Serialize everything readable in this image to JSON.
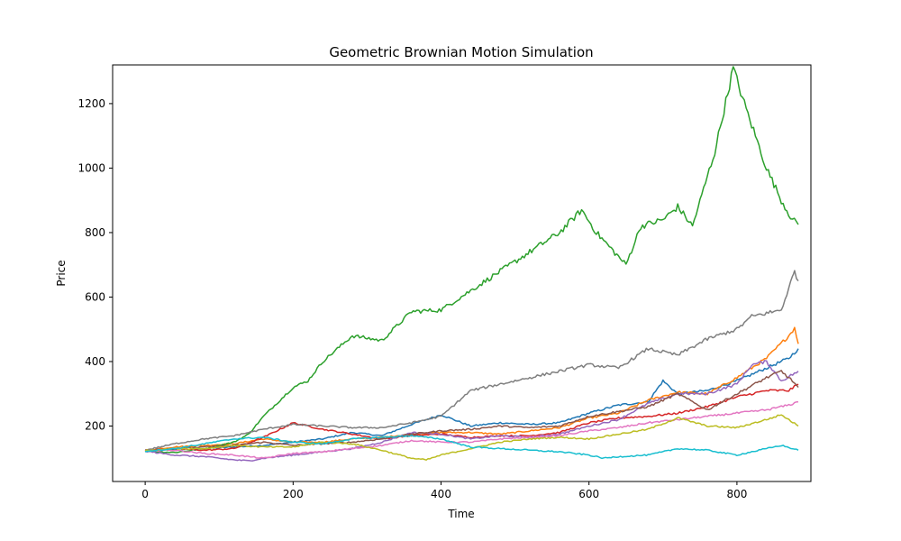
{
  "chart_data": {
    "type": "line",
    "title": "Geometric Brownian Motion Simulation",
    "xlabel": "Time",
    "ylabel": "Price",
    "xlim": [
      -44,
      900
    ],
    "ylim": [
      28,
      1320
    ],
    "xticks": [
      0,
      200,
      400,
      600,
      800
    ],
    "yticks": [
      200,
      400,
      600,
      800,
      1000,
      1200
    ],
    "grid": false,
    "legend": false,
    "series": [
      {
        "color": "#1f77b4",
        "points": [
          [
            0,
            124
          ],
          [
            40,
            128
          ],
          [
            80,
            130
          ],
          [
            120,
            135
          ],
          [
            160,
            140
          ],
          [
            200,
            150
          ],
          [
            240,
            160
          ],
          [
            280,
            180
          ],
          [
            320,
            170
          ],
          [
            360,
            205
          ],
          [
            400,
            235
          ],
          [
            440,
            200
          ],
          [
            480,
            210
          ],
          [
            520,
            205
          ],
          [
            560,
            210
          ],
          [
            600,
            240
          ],
          [
            640,
            265
          ],
          [
            680,
            275
          ],
          [
            700,
            340
          ],
          [
            720,
            300
          ],
          [
            760,
            310
          ],
          [
            800,
            340
          ],
          [
            840,
            380
          ],
          [
            870,
            410
          ],
          [
            883,
            440
          ]
        ]
      },
      {
        "color": "#ff7f0e",
        "points": [
          [
            0,
            125
          ],
          [
            40,
            135
          ],
          [
            80,
            140
          ],
          [
            120,
            145
          ],
          [
            160,
            160
          ],
          [
            200,
            150
          ],
          [
            240,
            150
          ],
          [
            280,
            160
          ],
          [
            320,
            165
          ],
          [
            360,
            175
          ],
          [
            400,
            180
          ],
          [
            440,
            180
          ],
          [
            480,
            175
          ],
          [
            520,
            185
          ],
          [
            560,
            195
          ],
          [
            600,
            225
          ],
          [
            640,
            240
          ],
          [
            680,
            280
          ],
          [
            720,
            305
          ],
          [
            760,
            300
          ],
          [
            800,
            350
          ],
          [
            840,
            410
          ],
          [
            870,
            480
          ],
          [
            878,
            505
          ],
          [
            883,
            455
          ]
        ]
      },
      {
        "color": "#2ca02c",
        "points": [
          [
            0,
            122
          ],
          [
            40,
            118
          ],
          [
            80,
            130
          ],
          [
            120,
            150
          ],
          [
            140,
            175
          ],
          [
            160,
            230
          ],
          [
            200,
            320
          ],
          [
            220,
            340
          ],
          [
            240,
            400
          ],
          [
            280,
            480
          ],
          [
            320,
            465
          ],
          [
            360,
            555
          ],
          [
            400,
            560
          ],
          [
            440,
            620
          ],
          [
            480,
            680
          ],
          [
            520,
            740
          ],
          [
            560,
            800
          ],
          [
            590,
            870
          ],
          [
            610,
            800
          ],
          [
            630,
            750
          ],
          [
            650,
            700
          ],
          [
            670,
            820
          ],
          [
            700,
            840
          ],
          [
            720,
            880
          ],
          [
            740,
            820
          ],
          [
            770,
            1050
          ],
          [
            795,
            1310
          ],
          [
            810,
            1200
          ],
          [
            840,
            1000
          ],
          [
            860,
            900
          ],
          [
            875,
            840
          ],
          [
            883,
            825
          ]
        ]
      },
      {
        "color": "#d62728",
        "points": [
          [
            0,
            125
          ],
          [
            40,
            130
          ],
          [
            80,
            125
          ],
          [
            120,
            130
          ],
          [
            160,
            165
          ],
          [
            200,
            210
          ],
          [
            240,
            190
          ],
          [
            280,
            175
          ],
          [
            320,
            160
          ],
          [
            360,
            170
          ],
          [
            400,
            175
          ],
          [
            440,
            165
          ],
          [
            480,
            170
          ],
          [
            520,
            170
          ],
          [
            560,
            180
          ],
          [
            600,
            210
          ],
          [
            640,
            225
          ],
          [
            680,
            230
          ],
          [
            720,
            240
          ],
          [
            760,
            260
          ],
          [
            800,
            290
          ],
          [
            840,
            310
          ],
          [
            870,
            310
          ],
          [
            883,
            330
          ]
        ]
      },
      {
        "color": "#9467bd",
        "points": [
          [
            0,
            122
          ],
          [
            40,
            110
          ],
          [
            80,
            105
          ],
          [
            120,
            95
          ],
          [
            140,
            92
          ],
          [
            160,
            100
          ],
          [
            200,
            110
          ],
          [
            240,
            120
          ],
          [
            280,
            130
          ],
          [
            320,
            150
          ],
          [
            360,
            180
          ],
          [
            400,
            175
          ],
          [
            440,
            160
          ],
          [
            480,
            170
          ],
          [
            520,
            165
          ],
          [
            560,
            175
          ],
          [
            600,
            200
          ],
          [
            640,
            220
          ],
          [
            680,
            270
          ],
          [
            720,
            300
          ],
          [
            760,
            300
          ],
          [
            800,
            330
          ],
          [
            820,
            390
          ],
          [
            840,
            400
          ],
          [
            860,
            340
          ],
          [
            883,
            370
          ]
        ]
      },
      {
        "color": "#8c564b",
        "points": [
          [
            0,
            125
          ],
          [
            40,
            130
          ],
          [
            80,
            135
          ],
          [
            120,
            140
          ],
          [
            160,
            150
          ],
          [
            200,
            140
          ],
          [
            240,
            145
          ],
          [
            280,
            150
          ],
          [
            320,
            160
          ],
          [
            360,
            175
          ],
          [
            400,
            185
          ],
          [
            440,
            190
          ],
          [
            480,
            200
          ],
          [
            520,
            195
          ],
          [
            560,
            200
          ],
          [
            600,
            230
          ],
          [
            640,
            245
          ],
          [
            680,
            260
          ],
          [
            720,
            300
          ],
          [
            760,
            250
          ],
          [
            800,
            300
          ],
          [
            840,
            350
          ],
          [
            860,
            370
          ],
          [
            875,
            340
          ],
          [
            883,
            320
          ]
        ]
      },
      {
        "color": "#e377c2",
        "points": [
          [
            0,
            124
          ],
          [
            40,
            125
          ],
          [
            80,
            115
          ],
          [
            120,
            110
          ],
          [
            160,
            100
          ],
          [
            200,
            115
          ],
          [
            240,
            120
          ],
          [
            280,
            130
          ],
          [
            320,
            140
          ],
          [
            360,
            155
          ],
          [
            400,
            150
          ],
          [
            440,
            150
          ],
          [
            480,
            160
          ],
          [
            520,
            165
          ],
          [
            560,
            170
          ],
          [
            600,
            185
          ],
          [
            640,
            195
          ],
          [
            680,
            210
          ],
          [
            720,
            220
          ],
          [
            760,
            230
          ],
          [
            800,
            240
          ],
          [
            840,
            250
          ],
          [
            870,
            265
          ],
          [
            883,
            275
          ]
        ]
      },
      {
        "color": "#7f7f7f",
        "points": [
          [
            0,
            125
          ],
          [
            40,
            145
          ],
          [
            80,
            160
          ],
          [
            120,
            170
          ],
          [
            160,
            190
          ],
          [
            200,
            205
          ],
          [
            240,
            200
          ],
          [
            280,
            195
          ],
          [
            320,
            195
          ],
          [
            360,
            210
          ],
          [
            400,
            230
          ],
          [
            440,
            310
          ],
          [
            480,
            330
          ],
          [
            520,
            350
          ],
          [
            560,
            370
          ],
          [
            600,
            390
          ],
          [
            640,
            380
          ],
          [
            680,
            440
          ],
          [
            720,
            420
          ],
          [
            760,
            470
          ],
          [
            800,
            500
          ],
          [
            820,
            540
          ],
          [
            840,
            550
          ],
          [
            860,
            560
          ],
          [
            875,
            660
          ],
          [
            878,
            680
          ],
          [
            883,
            650
          ]
        ]
      },
      {
        "color": "#bcbd22",
        "points": [
          [
            0,
            124
          ],
          [
            40,
            130
          ],
          [
            80,
            130
          ],
          [
            120,
            140
          ],
          [
            160,
            135
          ],
          [
            200,
            135
          ],
          [
            240,
            150
          ],
          [
            280,
            145
          ],
          [
            320,
            125
          ],
          [
            360,
            100
          ],
          [
            380,
            95
          ],
          [
            400,
            110
          ],
          [
            440,
            130
          ],
          [
            480,
            150
          ],
          [
            520,
            160
          ],
          [
            560,
            165
          ],
          [
            600,
            160
          ],
          [
            640,
            175
          ],
          [
            680,
            190
          ],
          [
            720,
            225
          ],
          [
            760,
            200
          ],
          [
            800,
            195
          ],
          [
            840,
            220
          ],
          [
            860,
            235
          ],
          [
            883,
            200
          ]
        ]
      },
      {
        "color": "#17becf",
        "points": [
          [
            0,
            122
          ],
          [
            40,
            130
          ],
          [
            80,
            145
          ],
          [
            120,
            160
          ],
          [
            160,
            165
          ],
          [
            200,
            150
          ],
          [
            240,
            145
          ],
          [
            280,
            160
          ],
          [
            320,
            165
          ],
          [
            360,
            170
          ],
          [
            400,
            160
          ],
          [
            440,
            135
          ],
          [
            480,
            130
          ],
          [
            520,
            125
          ],
          [
            560,
            120
          ],
          [
            600,
            110
          ],
          [
            620,
            100
          ],
          [
            640,
            105
          ],
          [
            680,
            110
          ],
          [
            720,
            130
          ],
          [
            760,
            125
          ],
          [
            800,
            110
          ],
          [
            840,
            130
          ],
          [
            860,
            140
          ],
          [
            883,
            125
          ]
        ]
      }
    ]
  }
}
